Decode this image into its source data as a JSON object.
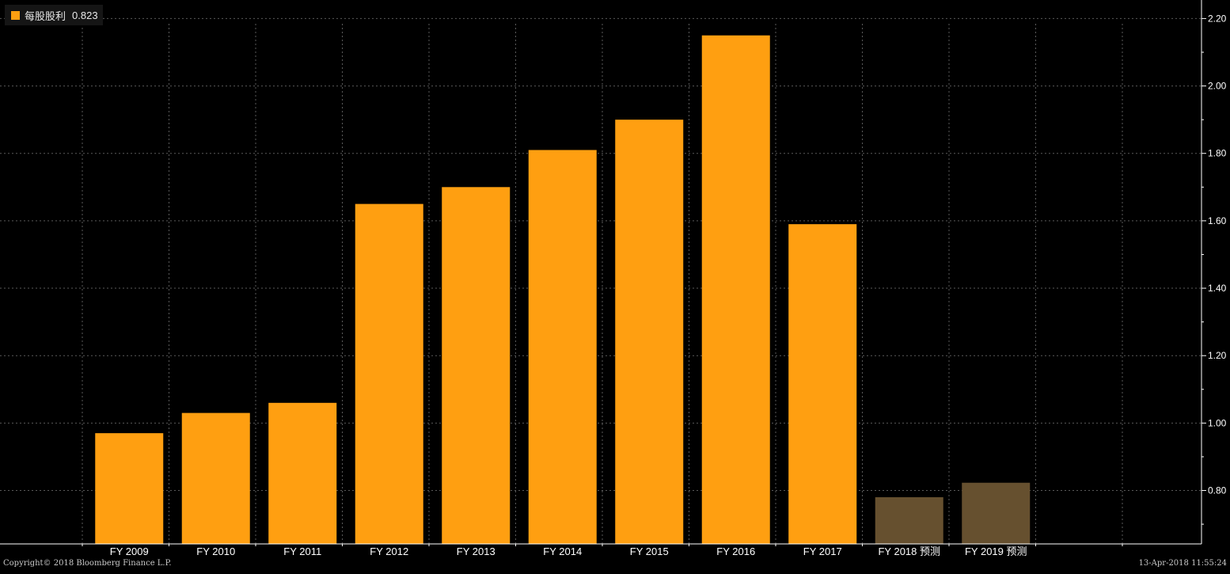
{
  "legend": {
    "label": "每股股利",
    "value": "0.823",
    "color": "#ff9f11"
  },
  "footer": {
    "copyright": "Copyright© 2018 Bloomberg Finance L.P.",
    "timestamp": "13-Apr-2018 11:55:24"
  },
  "chart_data": {
    "type": "bar",
    "categories": [
      "FY 2009",
      "FY 2010",
      "FY 2011",
      "FY 2012",
      "FY 2013",
      "FY 2014",
      "FY 2015",
      "FY 2016",
      "FY 2017",
      "FY 2018 预测",
      "FY 2019 预测"
    ],
    "series": [
      {
        "name": "每股股利",
        "values": [
          0.97,
          1.03,
          1.06,
          1.65,
          1.7,
          1.81,
          1.9,
          2.15,
          1.59,
          0.78,
          0.823
        ],
        "estimate": [
          false,
          false,
          false,
          false,
          false,
          false,
          false,
          false,
          false,
          true,
          true
        ]
      }
    ],
    "yticks": [
      "0.80",
      "1.00",
      "1.20",
      "1.40",
      "1.60",
      "1.80",
      "2.00",
      "2.20"
    ],
    "ylim": [
      0.6415,
      2.255
    ],
    "y_axis_side": "right",
    "grid": true,
    "legend_position": "top-left",
    "colors": {
      "actual": "#ff9f11",
      "estimate": "#66502f",
      "grid": "#5a5a5a",
      "axis": "#ffffff",
      "text": "#ffffff"
    }
  }
}
